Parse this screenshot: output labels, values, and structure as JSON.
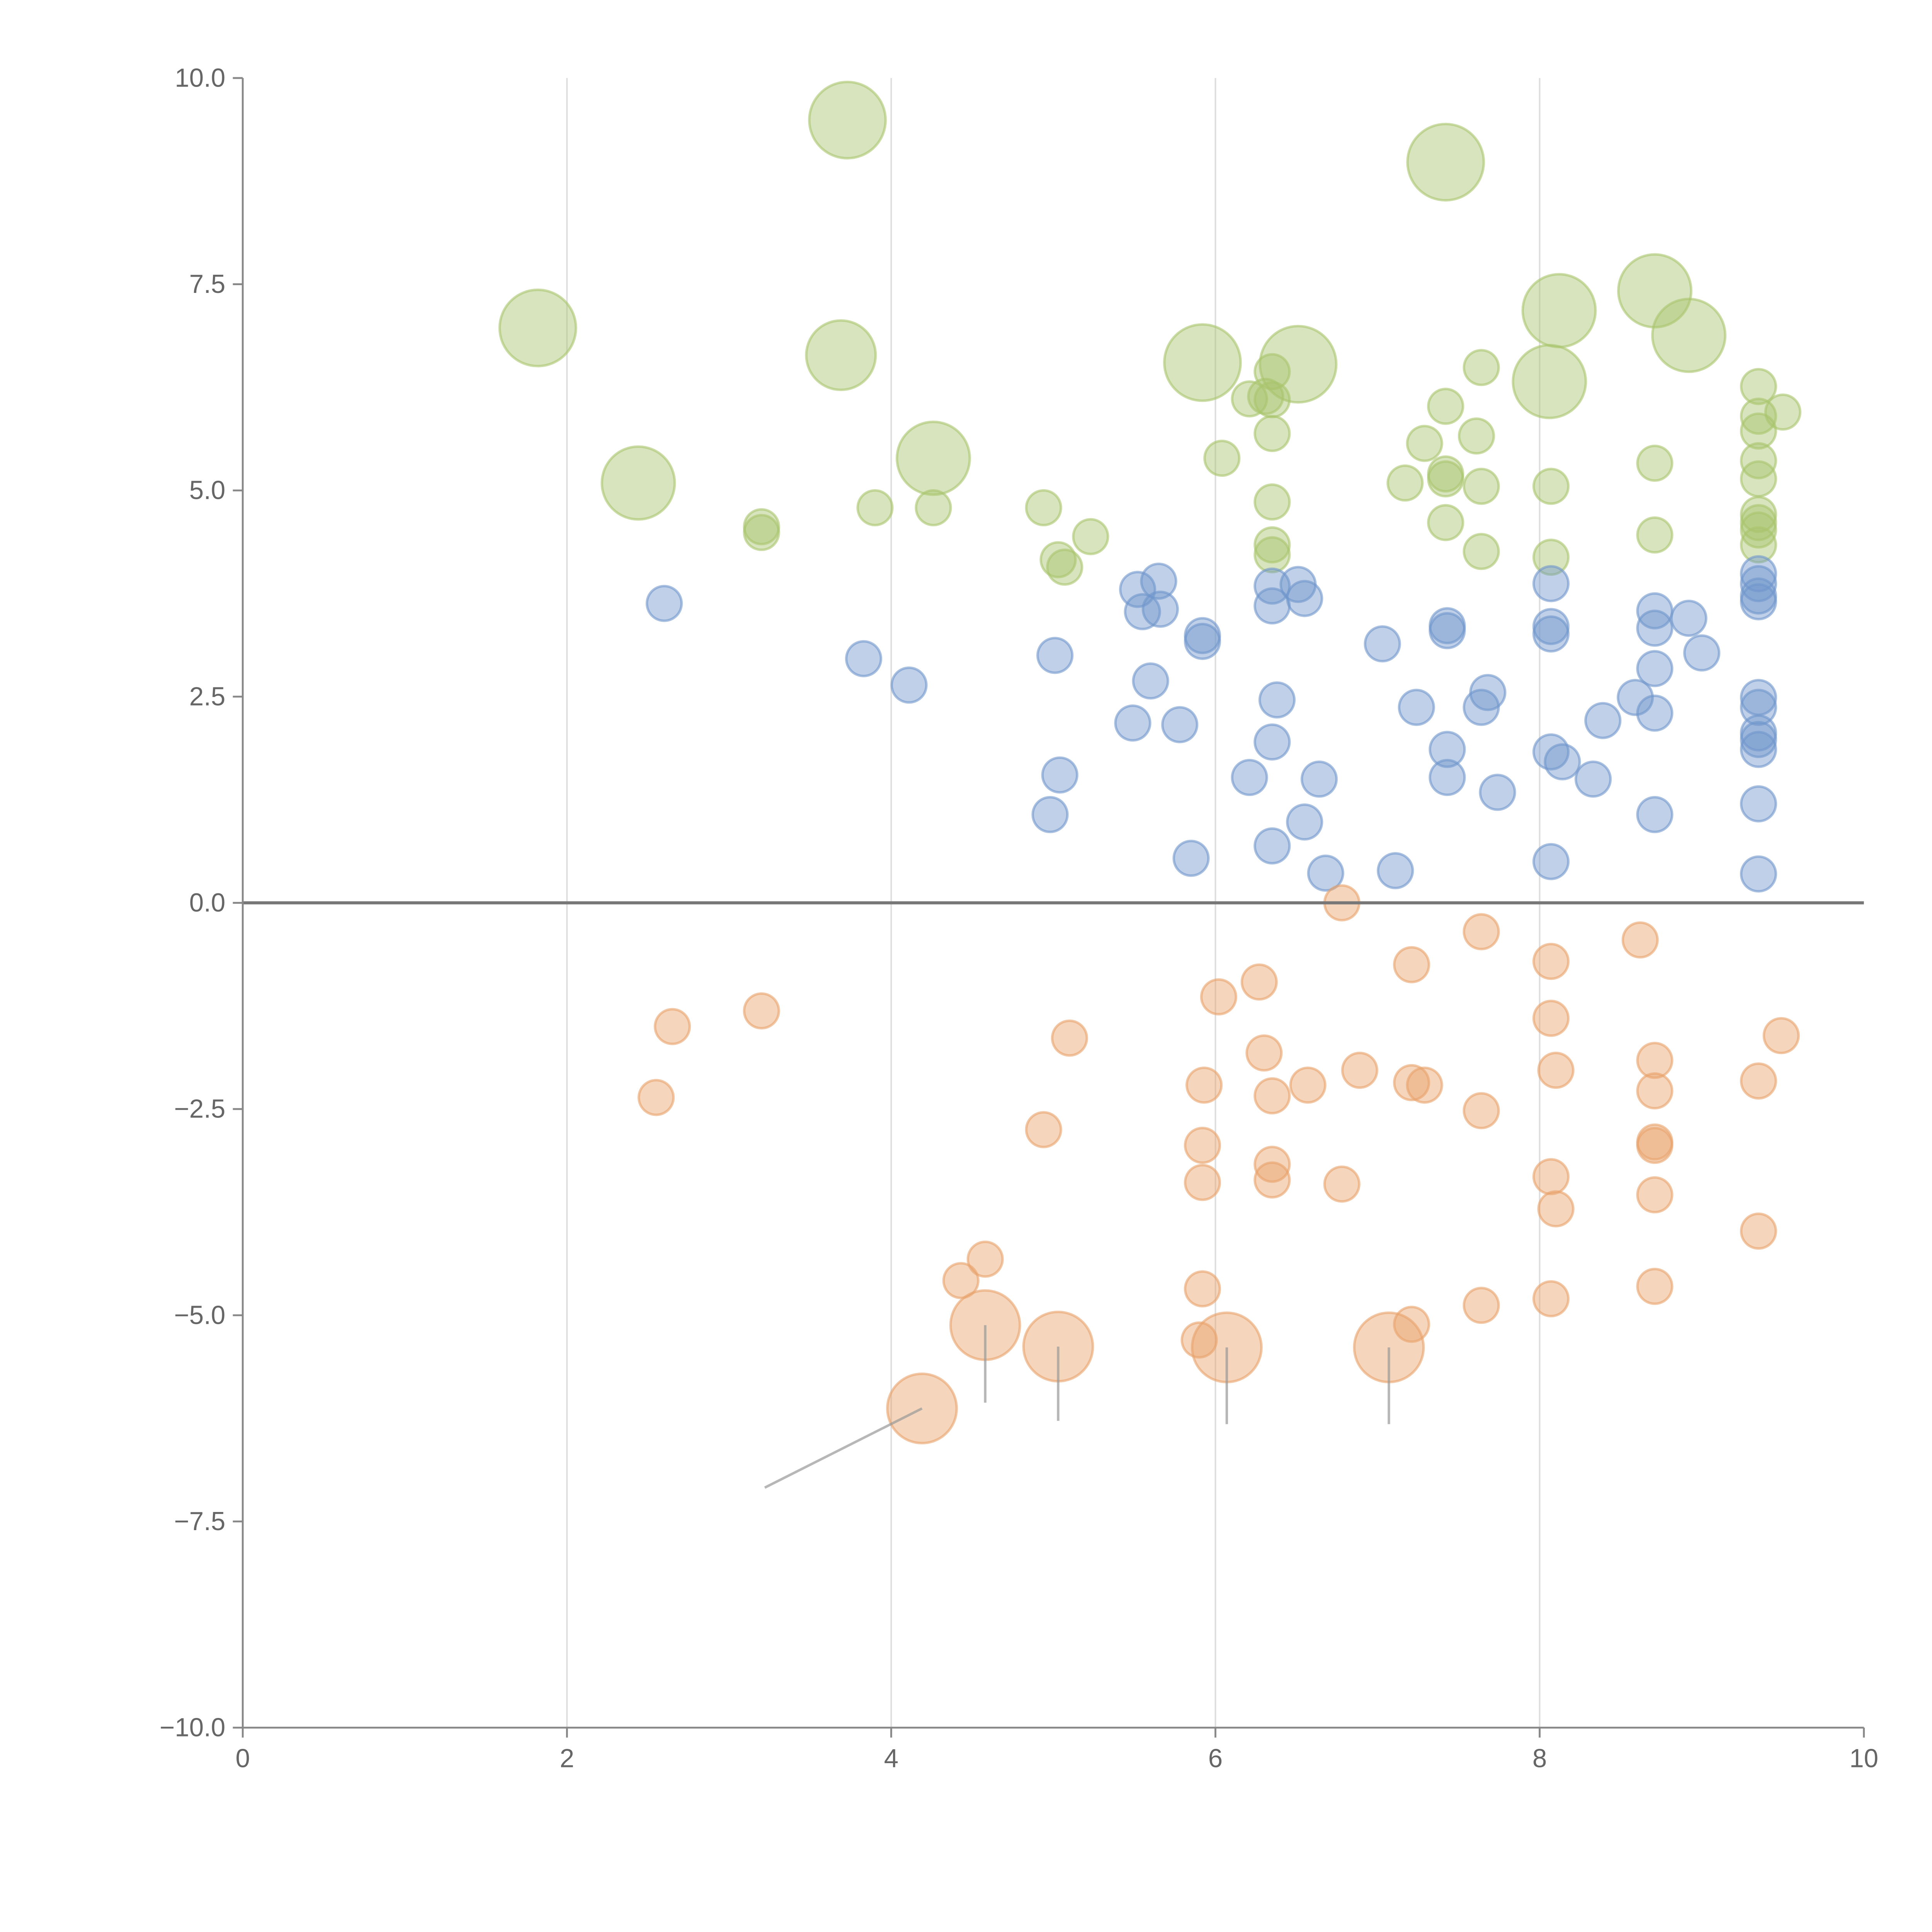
{
  "chart_data": {
    "type": "scatter",
    "title": "",
    "xlabel": "",
    "ylabel": "",
    "xlim": [
      0,
      10
    ],
    "ylim": [
      -10,
      10
    ],
    "x_ticks": [
      "0",
      "2",
      "4",
      "6",
      "8",
      "10"
    ],
    "x_tick_values": [
      0,
      2,
      4,
      6,
      8,
      10
    ],
    "y_ticks": [
      "10.0",
      "7.5",
      "5.0",
      "2.5",
      "0.0",
      "−2.5",
      "−5.0",
      "−7.5",
      "−10.0"
    ],
    "y_tick_values": [
      10,
      7.5,
      5,
      2.5,
      0,
      -2.5,
      -5,
      -7.5,
      -10
    ],
    "grid": "vertical at x = 2, 4, 6, 8",
    "reference_line_y": 0,
    "point_format": "[x, y, relative_size]",
    "series": [
      {
        "name": "green",
        "color": "#a9c46c",
        "points": [
          [
            3.73,
            9.49,
            2.2
          ],
          [
            7.42,
            8.98,
            2.2
          ],
          [
            1.82,
            6.97,
            2.2
          ],
          [
            3.69,
            6.64,
            2.0
          ],
          [
            5.92,
            6.55,
            2.2
          ],
          [
            6.51,
            6.53,
            2.2
          ],
          [
            8.12,
            7.18,
            2.1
          ],
          [
            8.71,
            7.42,
            2.1
          ],
          [
            8.92,
            6.88,
            2.1
          ],
          [
            8.06,
            6.32,
            2.1
          ],
          [
            2.44,
            5.09,
            2.1
          ],
          [
            4.26,
            5.39,
            2.1
          ],
          [
            3.2,
            4.56,
            1
          ],
          [
            3.2,
            4.49,
            1
          ],
          [
            3.9,
            4.79,
            1
          ],
          [
            4.26,
            4.79,
            1
          ],
          [
            4.94,
            4.79,
            1
          ],
          [
            5.03,
            4.16,
            1
          ],
          [
            5.07,
            4.07,
            1
          ],
          [
            5.23,
            4.44,
            1
          ],
          [
            6.04,
            5.39,
            1
          ],
          [
            6.21,
            6.11,
            1
          ],
          [
            6.31,
            6.14,
            1
          ],
          [
            6.35,
            6.44,
            1
          ],
          [
            6.35,
            6.1,
            1
          ],
          [
            6.35,
            5.69,
            1
          ],
          [
            6.35,
            4.86,
            1
          ],
          [
            6.35,
            4.34,
            1
          ],
          [
            6.35,
            4.22,
            1
          ],
          [
            7.17,
            5.09,
            1
          ],
          [
            7.29,
            5.57,
            1
          ],
          [
            7.42,
            6.02,
            1
          ],
          [
            7.42,
            5.2,
            1
          ],
          [
            7.42,
            5.14,
            1
          ],
          [
            7.42,
            4.61,
            1
          ],
          [
            7.61,
            5.66,
            1
          ],
          [
            7.64,
            6.49,
            1
          ],
          [
            7.64,
            5.05,
            1
          ],
          [
            7.64,
            4.26,
            1
          ],
          [
            8.07,
            5.05,
            1
          ],
          [
            8.07,
            4.19,
            1
          ],
          [
            8.71,
            5.33,
            1
          ],
          [
            8.71,
            4.46,
            1
          ],
          [
            9.35,
            6.26,
            1
          ],
          [
            9.35,
            5.9,
            1
          ],
          [
            9.35,
            5.72,
            1
          ],
          [
            9.35,
            5.36,
            1
          ],
          [
            9.35,
            5.14,
            1
          ],
          [
            9.35,
            4.71,
            1
          ],
          [
            9.35,
            4.61,
            1
          ],
          [
            9.35,
            4.52,
            1
          ],
          [
            9.35,
            4.34,
            1
          ],
          [
            9.5,
            5.95,
            1
          ]
        ]
      },
      {
        "name": "blue",
        "color": "#7096cc",
        "points": [
          [
            2.6,
            3.63,
            1
          ],
          [
            3.83,
            2.96,
            1
          ],
          [
            4.11,
            2.64,
            1
          ],
          [
            5.01,
            3.0,
            1
          ],
          [
            5.04,
            1.55,
            1
          ],
          [
            4.98,
            1.07,
            1
          ],
          [
            5.49,
            2.18,
            1
          ],
          [
            5.52,
            3.8,
            1
          ],
          [
            5.55,
            3.53,
            1
          ],
          [
            5.65,
            3.9,
            1
          ],
          [
            5.66,
            3.56,
            1
          ],
          [
            5.6,
            2.69,
            1
          ],
          [
            5.78,
            2.16,
            1
          ],
          [
            5.85,
            0.54,
            1
          ],
          [
            5.92,
            3.24,
            1
          ],
          [
            5.92,
            3.17,
            1
          ],
          [
            6.21,
            1.52,
            1
          ],
          [
            6.35,
            3.84,
            1
          ],
          [
            6.35,
            3.6,
            1
          ],
          [
            6.38,
            2.46,
            1
          ],
          [
            6.35,
            1.95,
            1
          ],
          [
            6.35,
            0.69,
            1
          ],
          [
            6.51,
            3.86,
            1
          ],
          [
            6.55,
            3.69,
            1
          ],
          [
            6.55,
            0.98,
            1
          ],
          [
            6.64,
            1.5,
            1
          ],
          [
            6.68,
            0.36,
            1
          ],
          [
            7.03,
            3.14,
            1
          ],
          [
            7.11,
            0.39,
            1
          ],
          [
            7.24,
            2.37,
            1
          ],
          [
            7.43,
            3.36,
            1
          ],
          [
            7.43,
            3.3,
            1
          ],
          [
            7.43,
            1.86,
            1
          ],
          [
            7.43,
            1.52,
            1
          ],
          [
            7.64,
            2.37,
            1
          ],
          [
            7.68,
            2.55,
            1
          ],
          [
            7.74,
            1.34,
            1
          ],
          [
            8.07,
            3.87,
            1
          ],
          [
            8.07,
            3.35,
            1
          ],
          [
            8.07,
            3.26,
            1
          ],
          [
            8.07,
            1.83,
            1
          ],
          [
            8.14,
            1.71,
            1
          ],
          [
            8.07,
            0.5,
            1
          ],
          [
            8.33,
            1.5,
            1
          ],
          [
            8.39,
            2.21,
            1
          ],
          [
            8.59,
            2.49,
            1
          ],
          [
            8.71,
            3.54,
            1
          ],
          [
            8.71,
            3.33,
            1
          ],
          [
            8.71,
            2.84,
            1
          ],
          [
            8.71,
            2.3,
            1
          ],
          [
            8.71,
            1.07,
            1
          ],
          [
            8.92,
            3.45,
            1
          ],
          [
            9.0,
            3.03,
            1
          ],
          [
            9.35,
            3.99,
            1
          ],
          [
            9.35,
            3.87,
            1
          ],
          [
            9.35,
            3.72,
            1
          ],
          [
            9.35,
            3.65,
            1
          ],
          [
            9.35,
            2.49,
            1
          ],
          [
            9.35,
            2.37,
            1
          ],
          [
            9.35,
            2.06,
            1
          ],
          [
            9.35,
            1.98,
            1
          ],
          [
            9.35,
            1.86,
            1
          ],
          [
            9.35,
            1.2,
            1
          ],
          [
            9.35,
            0.35,
            1
          ]
        ]
      },
      {
        "name": "orange",
        "color": "#e8a26a",
        "points": [
          [
            2.65,
            -1.5,
            1
          ],
          [
            2.55,
            -2.36,
            1
          ],
          [
            3.2,
            -1.31,
            1
          ],
          [
            5.1,
            -1.64,
            1
          ],
          [
            4.94,
            -2.75,
            1
          ],
          [
            4.43,
            -4.58,
            1
          ],
          [
            4.58,
            -4.32,
            1
          ],
          [
            6.02,
            -1.14,
            1
          ],
          [
            6.27,
            -0.96,
            1
          ],
          [
            6.78,
            0.0,
            1
          ],
          [
            7.21,
            -0.75,
            1
          ],
          [
            7.64,
            -0.35,
            1
          ],
          [
            6.3,
            -1.82,
            1
          ],
          [
            5.93,
            -2.21,
            1
          ],
          [
            6.35,
            -2.34,
            1
          ],
          [
            6.57,
            -2.21,
            1
          ],
          [
            6.89,
            -2.03,
            1
          ],
          [
            7.21,
            -2.18,
            1
          ],
          [
            7.29,
            -2.21,
            1
          ],
          [
            7.64,
            -2.52,
            1
          ],
          [
            5.92,
            -2.94,
            1
          ],
          [
            5.92,
            -3.39,
            1
          ],
          [
            6.35,
            -3.17,
            1
          ],
          [
            6.35,
            -3.36,
            1
          ],
          [
            6.78,
            -3.41,
            1
          ],
          [
            5.92,
            -4.68,
            1
          ],
          [
            5.9,
            -5.3,
            1
          ],
          [
            7.21,
            -5.11,
            1
          ],
          [
            7.64,
            -4.88,
            1
          ],
          [
            8.07,
            -0.71,
            1
          ],
          [
            8.07,
            -1.4,
            1
          ],
          [
            8.1,
            -2.03,
            1
          ],
          [
            8.07,
            -3.32,
            1
          ],
          [
            8.1,
            -3.71,
            1
          ],
          [
            8.07,
            -4.8,
            1
          ],
          [
            8.62,
            -0.45,
            1
          ],
          [
            8.71,
            -1.91,
            1
          ],
          [
            8.71,
            -2.28,
            1
          ],
          [
            8.71,
            -2.9,
            1
          ],
          [
            8.71,
            -2.94,
            1
          ],
          [
            8.71,
            -3.54,
            1
          ],
          [
            8.71,
            -4.65,
            1
          ],
          [
            9.35,
            -2.16,
            1
          ],
          [
            9.49,
            -1.61,
            1
          ],
          [
            9.35,
            -3.98,
            1
          ],
          [
            4.58,
            -5.12,
            2.0
          ],
          [
            5.03,
            -5.38,
            2.0
          ],
          [
            6.07,
            -5.39,
            2.0
          ],
          [
            7.07,
            -5.39,
            2.0
          ],
          [
            4.19,
            -6.13,
            2.0
          ]
        ]
      }
    ],
    "annotation_leaders": [
      {
        "from": [
          4.19,
          -6.13
        ],
        "to": [
          3.22,
          -7.09
        ]
      },
      {
        "from": [
          4.58,
          -5.12
        ],
        "to": [
          4.58,
          -6.06
        ]
      },
      {
        "from": [
          5.03,
          -5.38
        ],
        "to": [
          5.03,
          -6.28
        ]
      },
      {
        "from": [
          6.07,
          -5.39
        ],
        "to": [
          6.07,
          -6.32
        ]
      },
      {
        "from": [
          7.07,
          -5.39
        ],
        "to": [
          7.07,
          -6.32
        ]
      }
    ]
  }
}
